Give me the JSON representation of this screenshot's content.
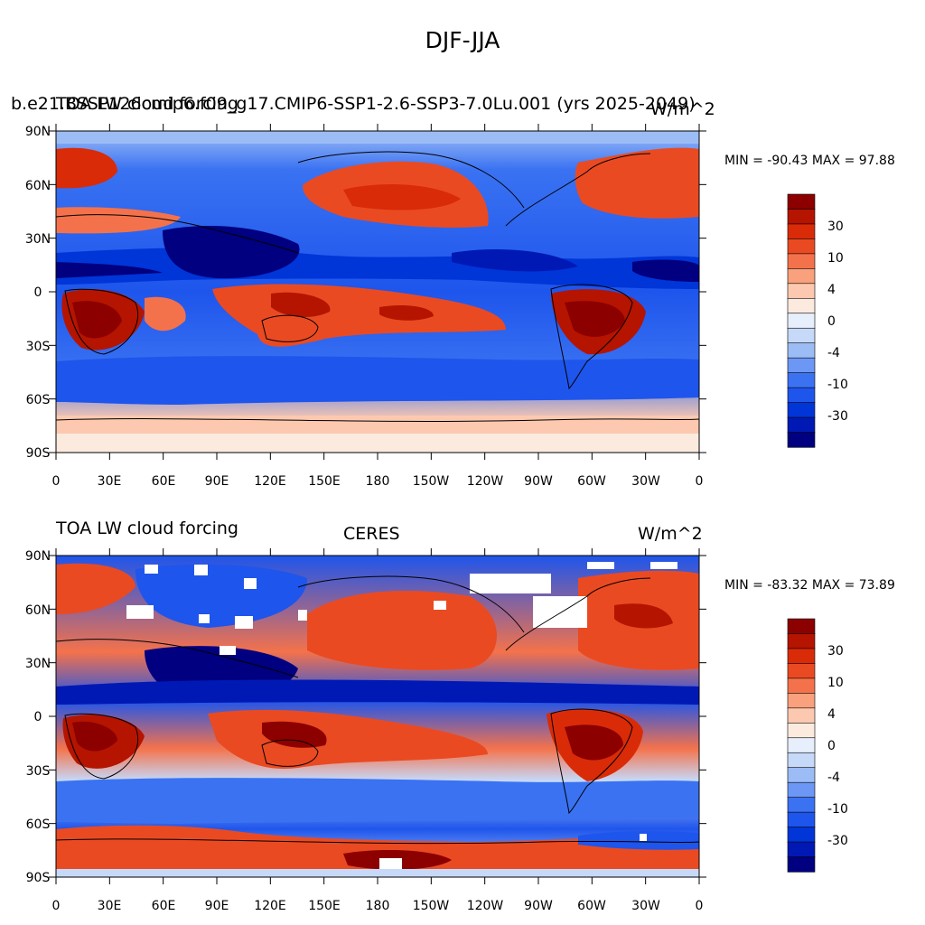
{
  "main_title": "DJF-JJA",
  "colors": {
    "palette": [
      "#000080",
      "#0019b4",
      "#0035d8",
      "#1e55ec",
      "#3a72f2",
      "#6c97f5",
      "#9cbcf6",
      "#c6d9f8",
      "#e6effb",
      "#fdeadf",
      "#fcc9b0",
      "#f9a07c",
      "#f4724b",
      "#ea4a22",
      "#d92b08",
      "#b51400",
      "#8c0000"
    ],
    "land_outline": "#000000",
    "missing": "#ffffff"
  },
  "legend": {
    "labels": [
      "30",
      "10",
      "4",
      "0",
      "-4",
      "-10",
      "-30"
    ]
  },
  "panels": [
    {
      "left_title": "b.e21.BSSP126cmip6.f09_g17.CMIP6-SSP1-2.6-SSP3-7.0Lu.001 (yrs 2025-2049)",
      "overlay_title": "TOA LW cloud forcing",
      "center_title": "",
      "right_title": "W/m^2",
      "stats": "MIN = -90.43 MAX =  97.88",
      "lat_ticks": [
        "90N",
        "60N",
        "30N",
        "0",
        "30S",
        "60S",
        "90S"
      ],
      "lon_ticks": [
        "0",
        "30E",
        "60E",
        "90E",
        "120E",
        "150E",
        "180",
        "150W",
        "120W",
        "90W",
        "60W",
        "30W",
        "0"
      ]
    },
    {
      "left_title": "TOA LW cloud forcing",
      "overlay_title": "",
      "center_title": "CERES",
      "right_title": "W/m^2",
      "stats": "MIN = -83.32 MAX =  73.89",
      "lat_ticks": [
        "90N",
        "60N",
        "30N",
        "0",
        "30S",
        "60S",
        "90S"
      ],
      "lon_ticks": [
        "0",
        "30E",
        "60E",
        "90E",
        "120E",
        "150E",
        "180",
        "150W",
        "120W",
        "90W",
        "60W",
        "30W",
        "0"
      ]
    }
  ]
}
